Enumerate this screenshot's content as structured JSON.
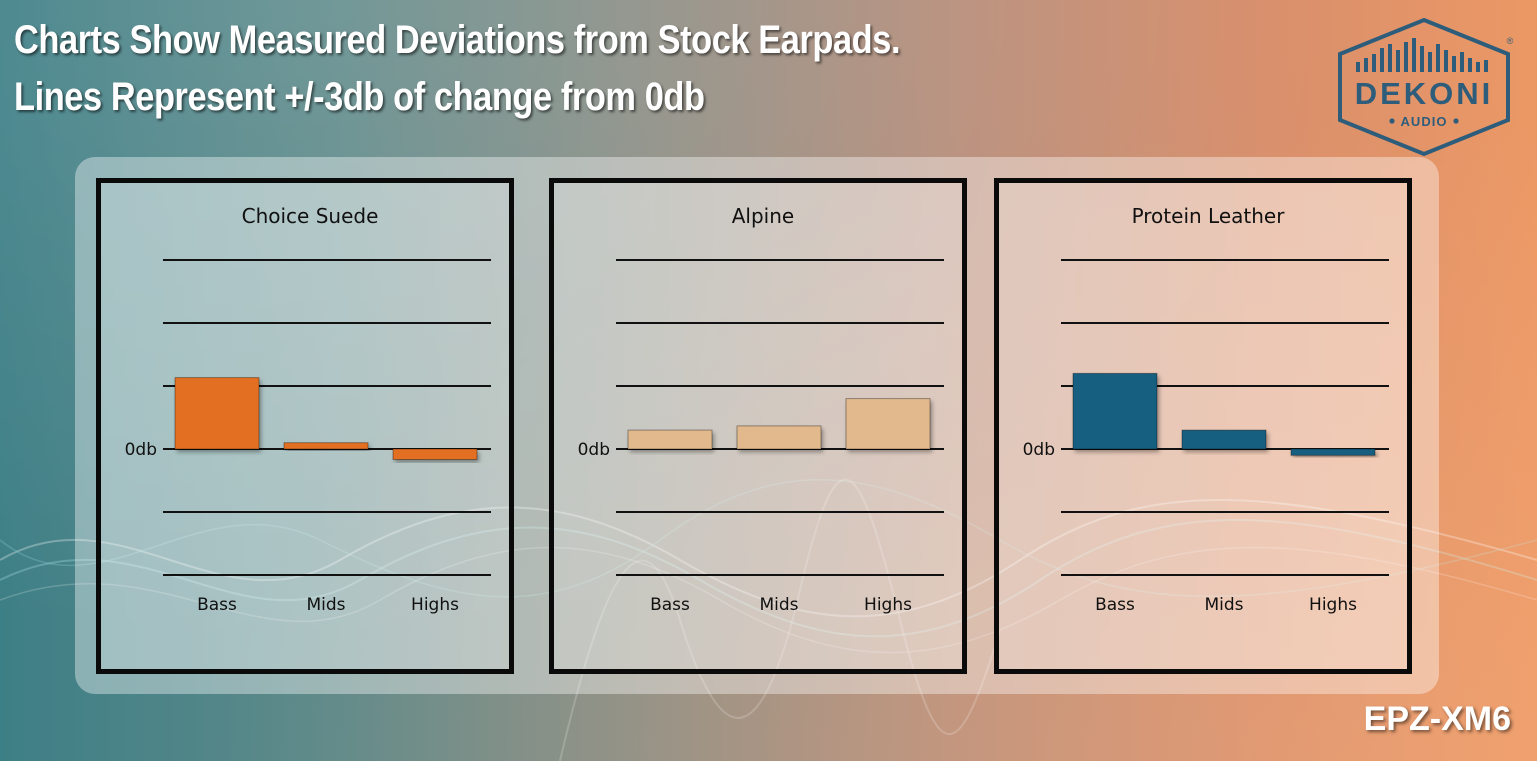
{
  "header": {
    "line1": "Charts Show Measured Deviations from Stock Earpads.",
    "line2": "Lines Represent +/-3db of change from 0db"
  },
  "logo": {
    "name": "DEKONI",
    "sub": "AUDIO",
    "registered": "®",
    "icon": "equalizer-bars-icon",
    "color": "#2d5d7b"
  },
  "product": {
    "name": "EPZ-XM6"
  },
  "chart_data": [
    {
      "type": "bar",
      "title": "Choice Suede",
      "categories": [
        "Bass",
        "Mids",
        "Highs"
      ],
      "values": [
        3.4,
        0.3,
        -0.5
      ],
      "zero_label": "0db",
      "gridline_step": 3,
      "ylim": [
        -6,
        9
      ],
      "color": "#e37021"
    },
    {
      "type": "bar",
      "title": "Alpine",
      "categories": [
        "Bass",
        "Mids",
        "Highs"
      ],
      "values": [
        0.9,
        1.1,
        2.4
      ],
      "zero_label": "0db",
      "gridline_step": 3,
      "ylim": [
        -6,
        9
      ],
      "color": "#e2b98d"
    },
    {
      "type": "bar",
      "title": "Protein Leather",
      "categories": [
        "Bass",
        "Mids",
        "Highs"
      ],
      "values": [
        3.6,
        0.9,
        -0.3
      ],
      "zero_label": "0db",
      "gridline_step": 3,
      "ylim": [
        -6,
        9
      ],
      "color": "#175e80"
    }
  ]
}
